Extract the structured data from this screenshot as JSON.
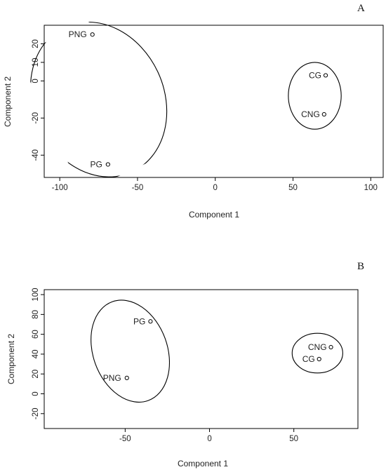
{
  "chart_data": [
    {
      "type": "scatter",
      "panel_label": "A",
      "xlabel": "Component 1",
      "ylabel": "Component 2",
      "xlim": [
        -110,
        108
      ],
      "ylim": [
        -52,
        30
      ],
      "xticks": [
        -100,
        -50,
        0,
        50,
        100
      ],
      "yticks": [
        -40,
        -20,
        0,
        10,
        20
      ],
      "points": [
        {
          "label": "PNG",
          "x": -79,
          "y": 25
        },
        {
          "label": "PG",
          "x": -69,
          "y": -45
        },
        {
          "label": "CG",
          "x": 71,
          "y": 3
        },
        {
          "label": "CNG",
          "x": 70,
          "y": -18
        }
      ],
      "ellipses": [
        {
          "cx": -75,
          "cy": -10,
          "rx": 42,
          "ry": 43,
          "rot": -25
        },
        {
          "cx": 64,
          "cy": -8,
          "rx": 17,
          "ry": 18,
          "rot": 0
        }
      ],
      "grid": false,
      "legend": "none"
    },
    {
      "type": "scatter",
      "panel_label": "B",
      "xlabel": "Component 1",
      "ylabel": "Component 2",
      "xlim": [
        -98,
        88
      ],
      "ylim": [
        -35,
        105
      ],
      "xticks": [
        -50,
        0,
        50
      ],
      "yticks": [
        -20,
        0,
        20,
        40,
        60,
        80,
        100
      ],
      "points": [
        {
          "label": "PG",
          "x": -35,
          "y": 73
        },
        {
          "label": "PNG",
          "x": -49,
          "y": 16
        },
        {
          "label": "CNG",
          "x": 72,
          "y": 47
        },
        {
          "label": "CG",
          "x": 65,
          "y": 35
        }
      ],
      "ellipses": [
        {
          "cx": -47,
          "cy": 43,
          "rx": 22,
          "ry": 53,
          "rot": -20
        },
        {
          "cx": 64,
          "cy": 41,
          "rx": 15,
          "ry": 20,
          "rot": 0
        }
      ],
      "grid": false,
      "legend": "none"
    }
  ]
}
